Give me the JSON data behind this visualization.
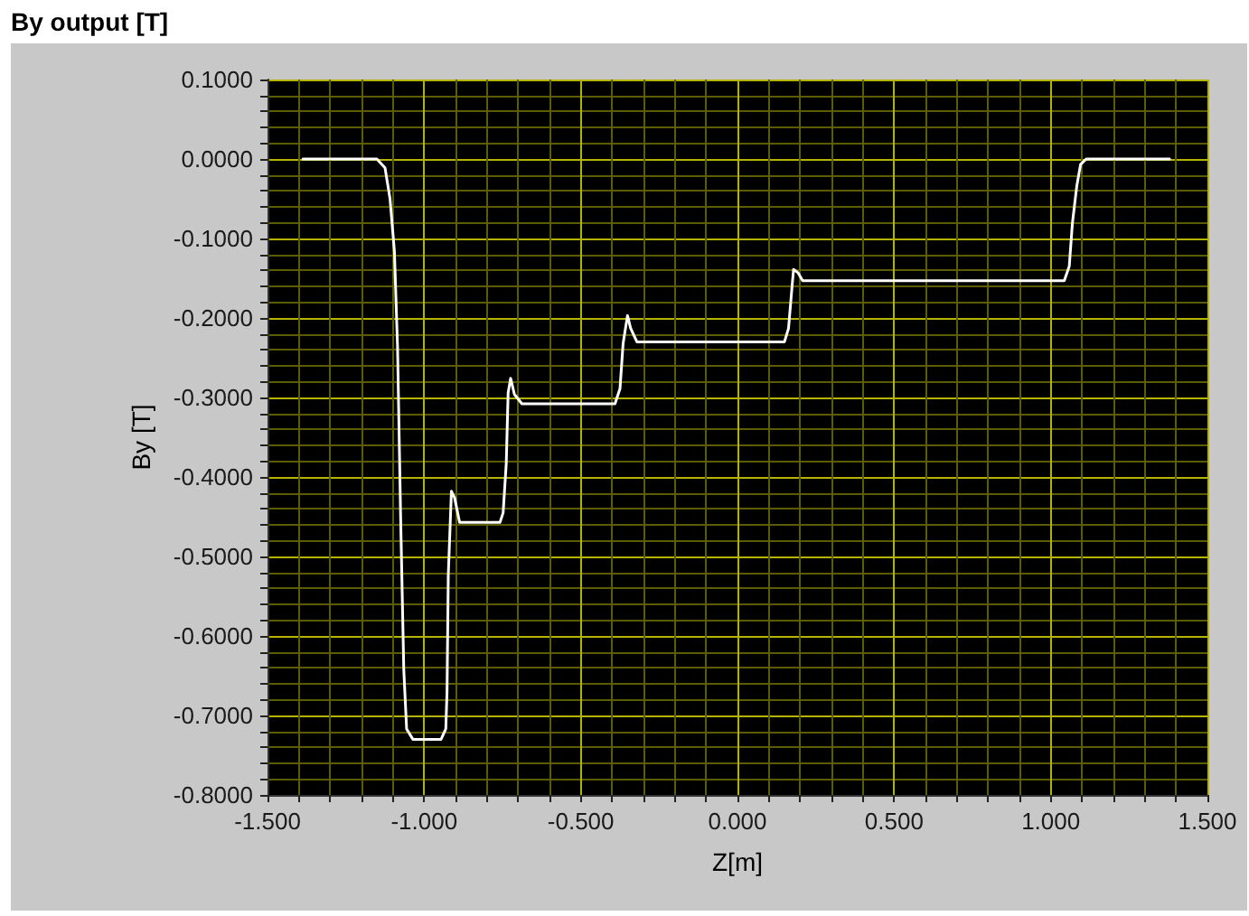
{
  "chart_data": {
    "type": "line",
    "title": "By output [T]",
    "xlabel": "Z[m]",
    "ylabel": "By [T]",
    "xlim": [
      -1.5,
      1.5
    ],
    "ylim": [
      -0.8,
      0.1
    ],
    "xticks": [
      {
        "value": -1.5,
        "label": "-1.500"
      },
      {
        "value": -1.4,
        "label": null
      },
      {
        "value": -1.3,
        "label": null
      },
      {
        "value": -1.2,
        "label": null
      },
      {
        "value": -1.1,
        "label": null
      },
      {
        "value": -1.0,
        "label": "-1.000"
      },
      {
        "value": -0.9,
        "label": null
      },
      {
        "value": -0.8,
        "label": null
      },
      {
        "value": -0.7,
        "label": null
      },
      {
        "value": -0.6,
        "label": null
      },
      {
        "value": -0.5,
        "label": "-0.500"
      },
      {
        "value": -0.4,
        "label": null
      },
      {
        "value": -0.3,
        "label": null
      },
      {
        "value": -0.2,
        "label": null
      },
      {
        "value": -0.1,
        "label": null
      },
      {
        "value": 0,
        "label": "0.000"
      },
      {
        "value": 0.1,
        "label": null
      },
      {
        "value": 0.2,
        "label": null
      },
      {
        "value": 0.3,
        "label": null
      },
      {
        "value": 0.4,
        "label": null
      },
      {
        "value": 0.5,
        "label": "0.500"
      },
      {
        "value": 0.6,
        "label": null
      },
      {
        "value": 0.7,
        "label": null
      },
      {
        "value": 0.8,
        "label": null
      },
      {
        "value": 0.9,
        "label": null
      },
      {
        "value": 1.0,
        "label": "1.000"
      },
      {
        "value": 1.1,
        "label": null
      },
      {
        "value": 1.2,
        "label": null
      },
      {
        "value": 1.3,
        "label": null
      },
      {
        "value": 1.4,
        "label": null
      },
      {
        "value": 1.5,
        "label": "1.500"
      }
    ],
    "yticks": [
      {
        "value": -0.8,
        "label": "-0.8000"
      },
      {
        "value": -0.78,
        "label": null
      },
      {
        "value": -0.76,
        "label": null
      },
      {
        "value": -0.74,
        "label": null
      },
      {
        "value": -0.72,
        "label": null
      },
      {
        "value": -0.7,
        "label": "-0.7000"
      },
      {
        "value": -0.68,
        "label": null
      },
      {
        "value": -0.66,
        "label": null
      },
      {
        "value": -0.64,
        "label": null
      },
      {
        "value": -0.62,
        "label": null
      },
      {
        "value": -0.6,
        "label": "-0.6000"
      },
      {
        "value": -0.58,
        "label": null
      },
      {
        "value": -0.56,
        "label": null
      },
      {
        "value": -0.54,
        "label": null
      },
      {
        "value": -0.52,
        "label": null
      },
      {
        "value": -0.5,
        "label": "-0.5000"
      },
      {
        "value": -0.48,
        "label": null
      },
      {
        "value": -0.46,
        "label": null
      },
      {
        "value": -0.44,
        "label": null
      },
      {
        "value": -0.42,
        "label": null
      },
      {
        "value": -0.4,
        "label": "-0.4000"
      },
      {
        "value": -0.38,
        "label": null
      },
      {
        "value": -0.36,
        "label": null
      },
      {
        "value": -0.34,
        "label": null
      },
      {
        "value": -0.32,
        "label": null
      },
      {
        "value": -0.3,
        "label": "-0.3000"
      },
      {
        "value": -0.28,
        "label": null
      },
      {
        "value": -0.26,
        "label": null
      },
      {
        "value": -0.24,
        "label": null
      },
      {
        "value": -0.22,
        "label": null
      },
      {
        "value": -0.2,
        "label": "-0.2000"
      },
      {
        "value": -0.18,
        "label": null
      },
      {
        "value": -0.16,
        "label": null
      },
      {
        "value": -0.14,
        "label": null
      },
      {
        "value": -0.12,
        "label": null
      },
      {
        "value": -0.1,
        "label": "-0.1000"
      },
      {
        "value": -0.08,
        "label": null
      },
      {
        "value": -0.06,
        "label": null
      },
      {
        "value": -0.04,
        "label": null
      },
      {
        "value": -0.02,
        "label": null
      },
      {
        "value": 0,
        "label": "0.0000"
      },
      {
        "value": 0.02,
        "label": null
      },
      {
        "value": 0.04,
        "label": null
      },
      {
        "value": 0.06,
        "label": null
      },
      {
        "value": 0.08,
        "label": null
      },
      {
        "value": 0.1,
        "label": "0.1000"
      }
    ],
    "grid": true,
    "marker": "none",
    "line_style": "solid",
    "series": [
      {
        "color": "#ffffff",
        "x": [
          -1.387,
          -1.151,
          -1.125,
          -1.109,
          -1.095,
          -1.085,
          -1.075,
          -1.065,
          -1.056,
          -1.036,
          -0.946,
          -0.931,
          -0.927,
          -0.923,
          -0.913,
          -0.903,
          -0.887,
          -0.758,
          -0.748,
          -0.738,
          -0.732,
          -0.724,
          -0.712,
          -0.688,
          -0.391,
          -0.375,
          -0.365,
          -0.351,
          -0.341,
          -0.321,
          0.15,
          0.163,
          0.173,
          0.179,
          0.193,
          0.208,
          1.043,
          1.059,
          1.069,
          1.083,
          1.095,
          1.113,
          1.379
        ],
        "values": [
          0,
          0,
          -0.011,
          -0.05,
          -0.116,
          -0.236,
          -0.453,
          -0.643,
          -0.717,
          -0.73,
          -0.73,
          -0.717,
          -0.67,
          -0.523,
          -0.418,
          -0.426,
          -0.457,
          -0.457,
          -0.445,
          -0.383,
          -0.294,
          -0.276,
          -0.296,
          -0.308,
          -0.308,
          -0.289,
          -0.232,
          -0.197,
          -0.213,
          -0.23,
          -0.23,
          -0.213,
          -0.166,
          -0.139,
          -0.143,
          -0.153,
          -0.153,
          -0.135,
          -0.081,
          -0.034,
          -0.007,
          0,
          0
        ]
      }
    ]
  }
}
